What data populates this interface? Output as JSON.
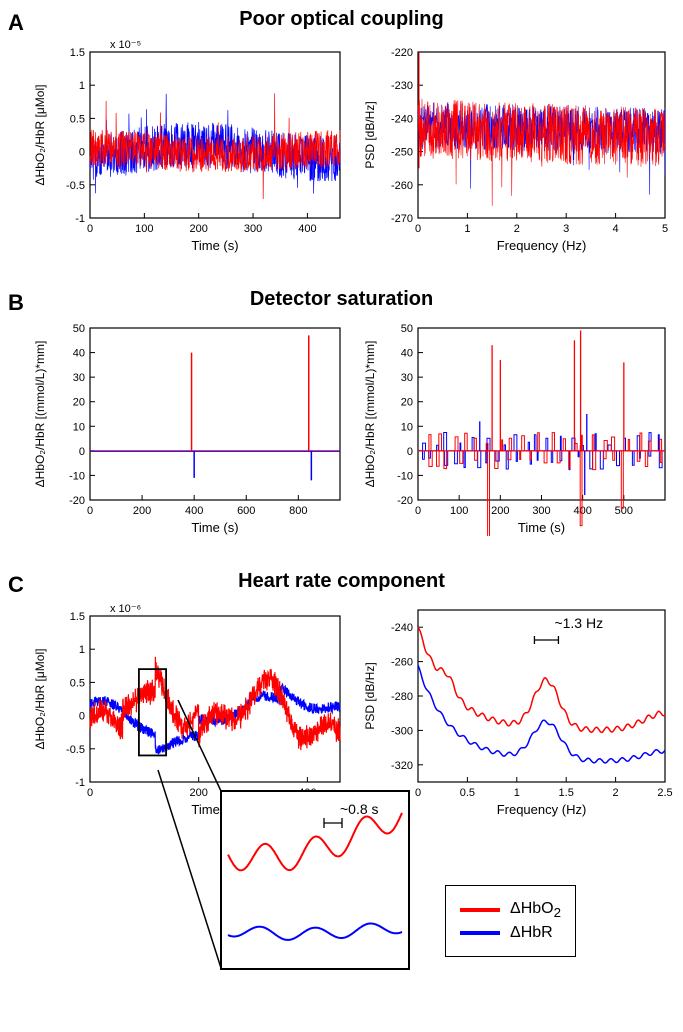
{
  "colors": {
    "hbo2": "#ff0000",
    "hbr": "#0000ff",
    "axis": "#000000",
    "bg": "#ffffff"
  },
  "legend": {
    "hbo2": "ΔHbO",
    "hbo2_sub": "2",
    "hbr": "ΔHbR"
  },
  "panels": {
    "A": {
      "label": "A",
      "title": "Poor optical coupling",
      "left": {
        "type": "line",
        "xlabel": "Time (s)",
        "ylabel": "ΔHbO₂/HbR [μMol]",
        "sciexp": "x 10⁻⁵",
        "xlim": [
          0,
          460
        ],
        "ylim": [
          -1,
          1.5
        ],
        "xticks": [
          0,
          100,
          200,
          300,
          400
        ],
        "yticks": [
          -1,
          -0.5,
          0,
          0.5,
          1,
          1.5
        ]
      },
      "right": {
        "type": "line",
        "xlabel": "Frequency (Hz)",
        "ylabel": "PSD [dB/Hz]",
        "xlim": [
          0,
          5
        ],
        "ylim": [
          -270,
          -220
        ],
        "xticks": [
          0,
          1,
          2,
          3,
          4,
          5
        ],
        "yticks": [
          -270,
          -260,
          -250,
          -240,
          -230,
          -220
        ]
      }
    },
    "B": {
      "label": "B",
      "title": "Detector saturation",
      "left": {
        "type": "line",
        "xlabel": "Time (s)",
        "ylabel": "ΔHbO₂/HbR [(mmol/L)*mm]",
        "xlim": [
          0,
          960
        ],
        "ylim": [
          -20,
          50
        ],
        "xticks": [
          0,
          200,
          400,
          600,
          800
        ],
        "yticks": [
          -20,
          -10,
          0,
          10,
          20,
          30,
          40,
          50
        ],
        "spikes": [
          {
            "x": 390,
            "h": 40,
            "c": "hbo2"
          },
          {
            "x": 400,
            "h": -11,
            "c": "hbr"
          },
          {
            "x": 840,
            "h": 47,
            "c": "hbo2"
          },
          {
            "x": 850,
            "h": -12,
            "c": "hbr"
          }
        ]
      },
      "right": {
        "type": "line",
        "xlabel": "Time (s)",
        "ylabel": "ΔHbO₂/HbR [(mmol/L)*mm]",
        "xlim": [
          0,
          600
        ],
        "ylim": [
          -20,
          50
        ],
        "xticks": [
          0,
          100,
          200,
          300,
          400,
          500
        ],
        "yticks": [
          -20,
          -10,
          0,
          10,
          20,
          30,
          40,
          50
        ]
      }
    },
    "C": {
      "label": "C",
      "title": "Heart rate component",
      "left": {
        "type": "line",
        "xlabel": "Time (s)",
        "ylabel": "ΔHbO₂/HbR [μMol]",
        "sciexp": "x 10⁻⁶",
        "xlim": [
          0,
          460
        ],
        "ylim": [
          -1,
          1.5
        ],
        "xticks": [
          0,
          200,
          400
        ],
        "yticks": [
          -1,
          -0.5,
          0,
          0.5,
          1,
          1.5
        ],
        "inset": {
          "anno": "~0.8 s"
        }
      },
      "right": {
        "type": "line",
        "xlabel": "Frequency (Hz)",
        "ylabel": "PSD [dB/Hz]",
        "xlim": [
          0,
          2.5
        ],
        "ylim": [
          -330,
          -230
        ],
        "xticks": [
          0,
          0.5,
          1,
          1.5,
          2,
          2.5
        ],
        "yticks": [
          -320,
          -300,
          -280,
          -260,
          -240
        ],
        "anno": "~1.3 Hz"
      }
    }
  }
}
